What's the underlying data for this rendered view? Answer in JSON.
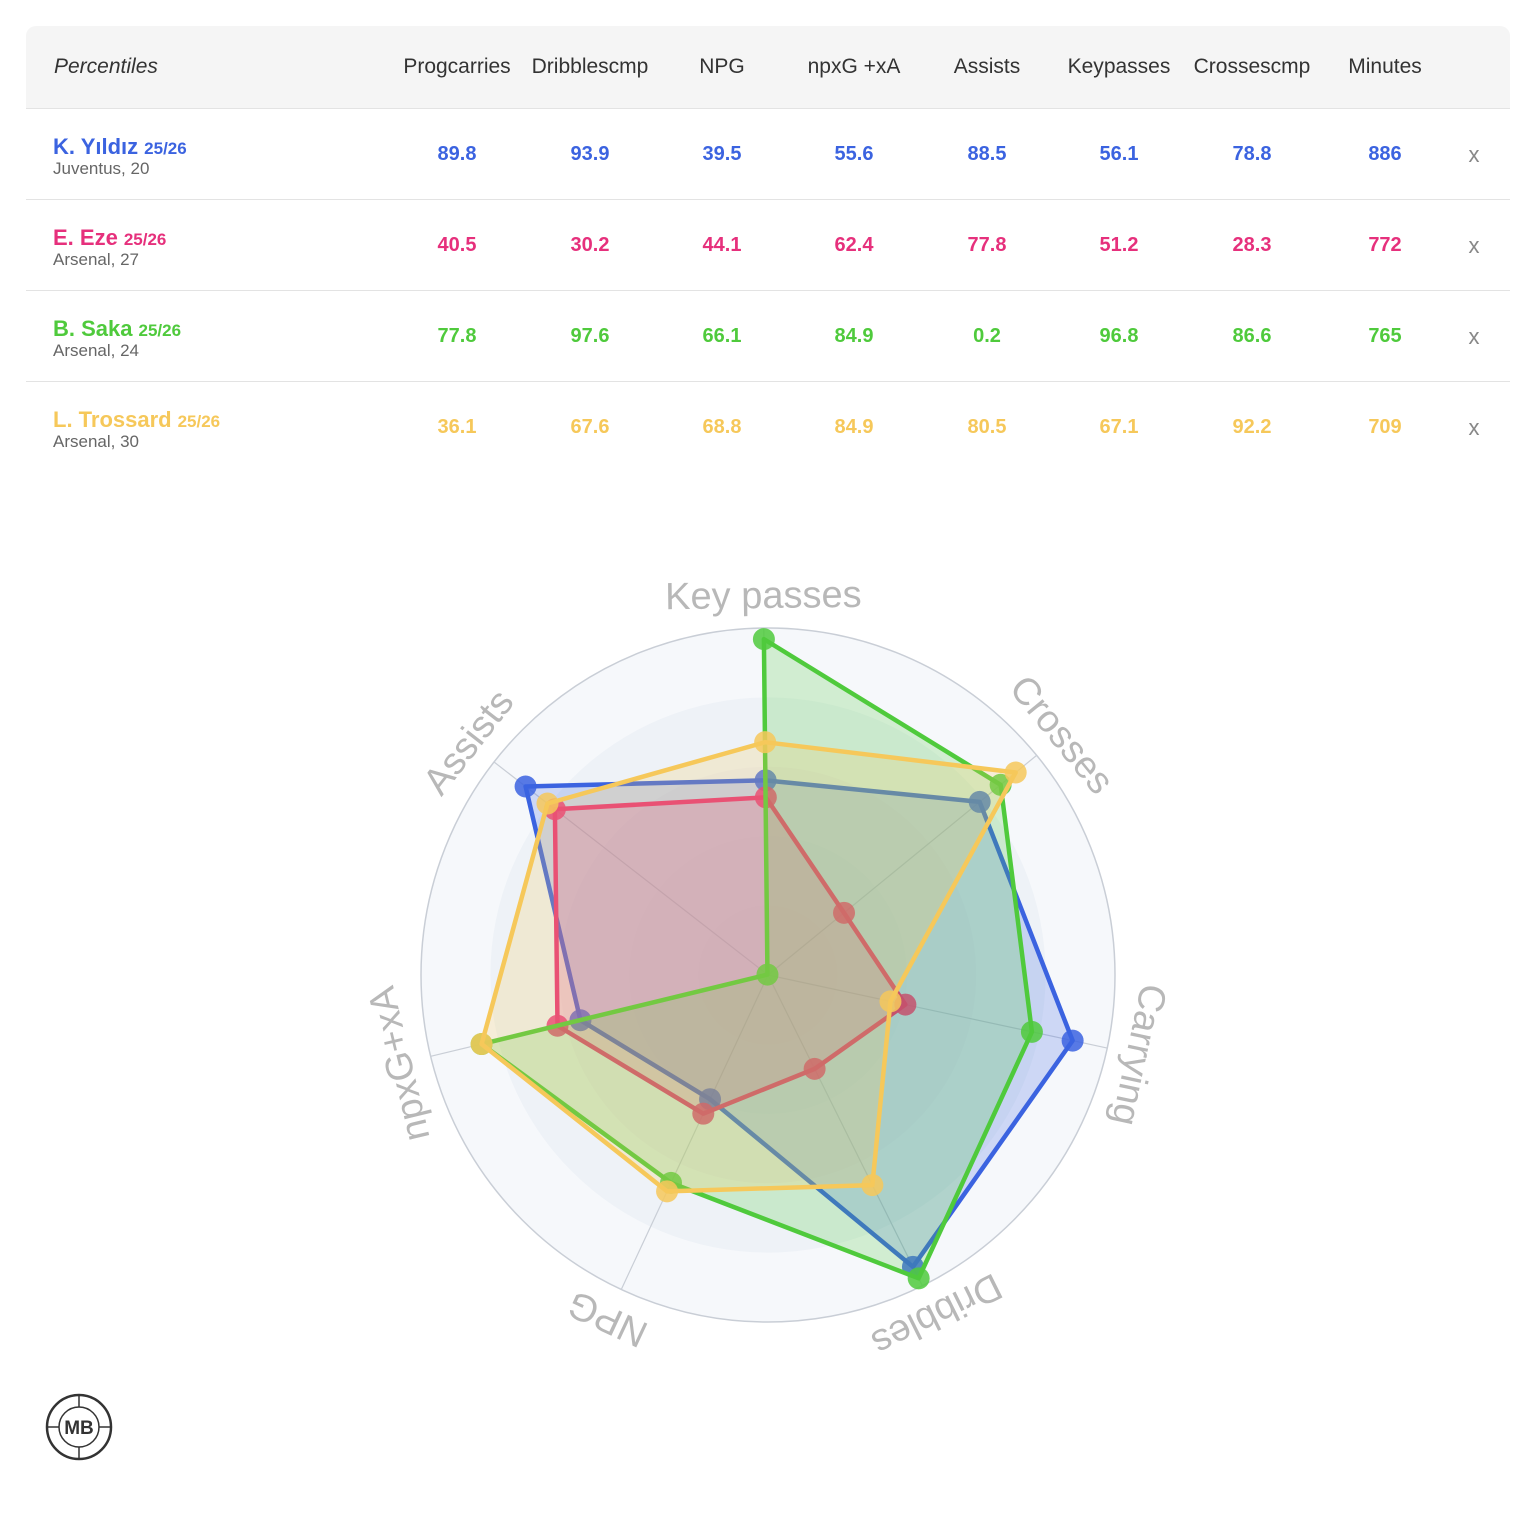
{
  "table": {
    "headers": [
      {
        "lines": [
          "Percentiles"
        ]
      },
      {
        "lines": [
          "Prog",
          "carries"
        ]
      },
      {
        "lines": [
          "Dribbles",
          "cmp"
        ]
      },
      {
        "lines": [
          "NPG"
        ]
      },
      {
        "lines": [
          "npxG +xA"
        ]
      },
      {
        "lines": [
          "Assists"
        ]
      },
      {
        "lines": [
          "Key",
          "passes"
        ]
      },
      {
        "lines": [
          "Crosses",
          "cmp"
        ]
      },
      {
        "lines": [
          "Minutes"
        ]
      }
    ],
    "remove_label": "x"
  },
  "players": [
    {
      "name": "K. Yıldız",
      "season": "25/26",
      "info": "Juventus, 20",
      "color": "#3b63e0",
      "values": [
        "89.8",
        "93.9",
        "39.5",
        "55.6",
        "88.5",
        "56.1",
        "78.8",
        "886"
      ]
    },
    {
      "name": "E. Eze",
      "season": "25/26",
      "info": "Arsenal, 27",
      "color": "#e6307c",
      "values": [
        "40.5",
        "30.2",
        "44.1",
        "62.4",
        "77.8",
        "51.2",
        "28.3",
        "772"
      ]
    },
    {
      "name": "B. Saka",
      "season": "25/26",
      "info": "Arsenal, 24",
      "color": "#4fca3c",
      "values": [
        "77.8",
        "97.6",
        "66.1",
        "84.9",
        "0.2",
        "96.8",
        "86.6",
        "765"
      ]
    },
    {
      "name": "L. Trossard",
      "season": "25/26",
      "info": "Arsenal, 30",
      "color": "#f6c85a",
      "values": [
        "36.1",
        "67.6",
        "68.8",
        "84.9",
        "80.5",
        "67.1",
        "92.2",
        "709"
      ]
    }
  ],
  "chart_data": {
    "type": "radar",
    "axes": [
      "Key passes",
      "Crosses",
      "Carrying",
      "Dribbles",
      "NPG",
      "npxG+xA",
      "Assists"
    ],
    "range": [
      0,
      100
    ],
    "series": [
      {
        "name": "K. Yıldız",
        "color": "#3b63e0",
        "values": [
          56.1,
          78.8,
          89.8,
          93.9,
          39.5,
          55.6,
          88.5
        ]
      },
      {
        "name": "E. Eze",
        "color": "#e6307c",
        "values": [
          51.2,
          28.3,
          40.5,
          30.2,
          44.1,
          62.4,
          77.8
        ]
      },
      {
        "name": "B. Saka",
        "color": "#4fca3c",
        "values": [
          96.8,
          86.6,
          77.8,
          97.6,
          66.1,
          84.9,
          0.2
        ]
      },
      {
        "name": "L. Trossard",
        "color": "#f6c85a",
        "values": [
          67.1,
          92.2,
          36.1,
          67.6,
          68.8,
          84.9,
          80.5
        ]
      }
    ]
  },
  "logo": {
    "text": "MB"
  }
}
